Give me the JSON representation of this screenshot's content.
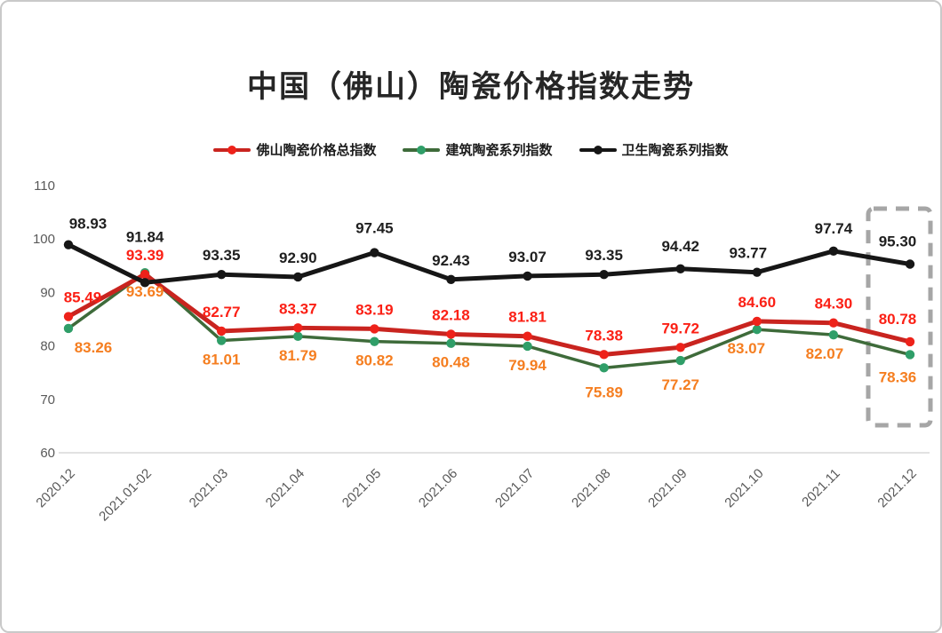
{
  "title": "中国（佛山）陶瓷价格指数走势",
  "chart_data": {
    "type": "line",
    "title": "中国（佛山）陶瓷价格指数走势",
    "categories": [
      "2020.12",
      "2021.01-02",
      "2021.03",
      "2021.04",
      "2021.05",
      "2021.06",
      "2021.07",
      "2021.08",
      "2021.09",
      "2021.10",
      "2021.11",
      "2021.12"
    ],
    "series": [
      {
        "name": "佛山陶瓷价格总指数",
        "values": [
          85.49,
          93.39,
          82.77,
          83.37,
          83.19,
          82.18,
          81.81,
          78.38,
          79.72,
          84.6,
          84.3,
          80.78
        ],
        "line_color": "#c9241f",
        "marker_color": "#ee221a",
        "label_color": "#fb2015",
        "label_side": "above",
        "line_width": 5,
        "label_dx": [
          16,
          0,
          0,
          0,
          0,
          0,
          0,
          0,
          0,
          0,
          0,
          -14
        ],
        "label_dy": [
          0,
          0,
          0,
          0,
          0,
          0,
          0,
          0,
          0,
          0,
          0,
          -4
        ]
      },
      {
        "name": "建筑陶瓷系列指数",
        "values": [
          83.26,
          93.69,
          81.01,
          81.79,
          80.82,
          80.48,
          79.94,
          75.89,
          77.27,
          83.07,
          82.07,
          78.36
        ],
        "line_color": "#3e6b3a",
        "marker_color": "#2f9e68",
        "label_color": "#f57e20",
        "label_side": "below",
        "line_width": 3.5,
        "label_dx": [
          28,
          0,
          0,
          0,
          0,
          0,
          0,
          0,
          0,
          -12,
          -10,
          -14
        ],
        "label_dy": [
          0,
          0,
          0,
          0,
          0,
          0,
          0,
          6,
          6,
          0,
          0,
          4
        ]
      },
      {
        "name": "卫生陶瓷系列指数",
        "values": [
          98.93,
          91.84,
          93.35,
          92.9,
          97.45,
          92.43,
          93.07,
          93.35,
          94.42,
          93.77,
          97.74,
          95.3
        ],
        "line_color": "#161616",
        "marker_color": "#161616",
        "label_color": "#1f1f1f",
        "label_side": "above",
        "line_width": 5,
        "label_dx": [
          22,
          0,
          0,
          0,
          0,
          0,
          0,
          0,
          0,
          -10,
          0,
          -14
        ],
        "label_dy": [
          -2,
          -30,
          0,
          0,
          -6,
          0,
          0,
          0,
          -4,
          0,
          -4,
          -4
        ]
      }
    ],
    "ylim": [
      60,
      110
    ],
    "yticks": [
      110,
      100,
      90,
      80,
      70,
      60
    ],
    "grid": false,
    "legend_position": "top",
    "highlight_last_category": true,
    "axis_text_color": "#595959",
    "axis_line_color": "#d9d9d9",
    "highlight_box_color": "#a6a6a6"
  }
}
